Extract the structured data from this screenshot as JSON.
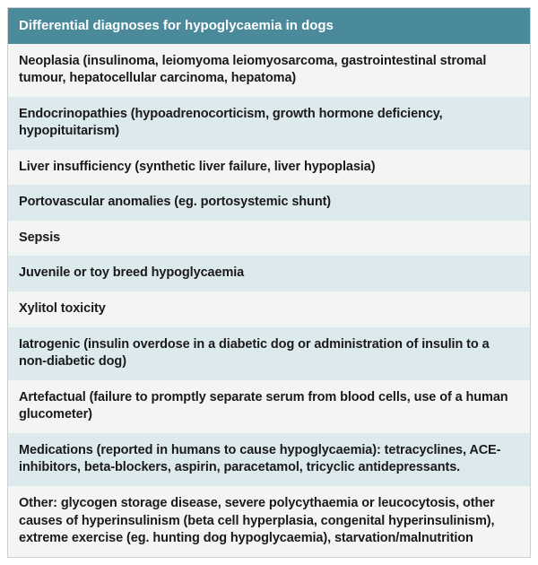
{
  "table": {
    "header": {
      "text": "Differential diagnoses for hypoglycaemia in dogs",
      "bg_color": "#4b8a9b",
      "text_color": "#ffffff"
    },
    "row_colors": {
      "odd": "#f3f4f4",
      "even": "#dce9ed"
    },
    "row_text_color": "#1a1a1a",
    "rows": [
      "Neoplasia (insulinoma, leiomyoma leiomyosarcoma, gastrointestinal stromal tumour, hepatocellular carcinoma, hepatoma)",
      "Endocrinopathies (hypoadrenocorticism, growth hormone deficiency, hypopituitarism)",
      "Liver insufficiency (synthetic liver failure, liver hypoplasia)",
      "Portovascular anomalies (eg. portosystemic shunt)",
      "Sepsis",
      "Juvenile or toy breed hypoglycaemia",
      "Xylitol toxicity",
      "Iatrogenic (insulin overdose in a diabetic dog or administration of insulin to a non-diabetic dog)",
      "Artefactual (failure to promptly separate serum from blood cells, use of a human glucometer)",
      "Medications (reported in humans to cause hypoglycaemia): tetracyclines, ACE-inhibitors, beta-blockers, aspirin, paracetamol, tricyclic antidepressants.",
      "Other: glycogen storage disease, severe polycythaemia or leucocytosis, other causes of hyperinsulinism (beta cell hyperplasia, congenital hyperinsulinism), extreme exercise (eg. hunting dog hypoglycaemia), starvation/malnutrition"
    ]
  }
}
